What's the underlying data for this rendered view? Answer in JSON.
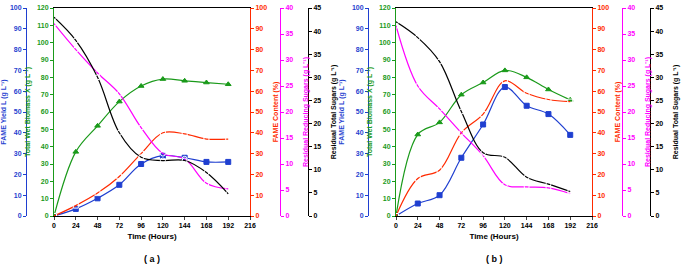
{
  "chart_data": [
    {
      "type": "line",
      "title": "( a )",
      "x_label": "Time (Hours)",
      "x": [
        0,
        24,
        48,
        72,
        96,
        120,
        144,
        168,
        192
      ],
      "xlim": [
        0,
        216
      ],
      "xticks": [
        0,
        24,
        48,
        72,
        96,
        120,
        144,
        168,
        192,
        216
      ],
      "series": [
        {
          "name": "FAME Yield L (g L⁻¹)",
          "axis": "y",
          "color": "#1f3fd0",
          "marker": "square",
          "line_style": "smooth",
          "ylim": [
            0,
            100
          ],
          "yticks": [
            0,
            10,
            20,
            30,
            40,
            50,
            60,
            70,
            80,
            90,
            100
          ],
          "values": [
            0,
            3.4,
            8.5,
            15,
            25,
            29,
            28,
            26,
            26
          ]
        },
        {
          "name": "Total Wet Biomass X (g L⁻¹)",
          "axis": "y2",
          "color": "#1a9a1a",
          "marker": "triangle-up",
          "line_style": "smooth",
          "ylim": [
            0,
            120
          ],
          "yticks": [
            0,
            10,
            20,
            30,
            40,
            50,
            60,
            70,
            80,
            90,
            100,
            110,
            120
          ],
          "values": [
            0,
            37,
            52,
            66,
            75,
            79,
            78,
            77,
            76
          ]
        },
        {
          "name": "FAME Content (%)",
          "axis": "y3",
          "color": "#ff2a00",
          "marker": "square-open",
          "line_style": "smooth",
          "ylim": [
            0,
            100
          ],
          "yticks": [
            0,
            10,
            20,
            30,
            40,
            50,
            60,
            70,
            80,
            90,
            100
          ],
          "values": [
            0,
            5,
            11,
            19,
            30,
            40,
            39.5,
            37,
            37
          ]
        },
        {
          "name": "Residual Reducing Sugars (g L⁻¹)",
          "axis": "y4",
          "color": "#ff00ff",
          "marker": "circle-open",
          "line_style": "smooth",
          "ylim": [
            0,
            40
          ],
          "yticks": [
            0,
            5,
            10,
            15,
            20,
            25,
            30,
            35,
            40
          ],
          "values": [
            37,
            32,
            27.5,
            23.5,
            17,
            12,
            11,
            6.3,
            5.2
          ]
        },
        {
          "name": "Residual Total Sugars (g L⁻¹)",
          "axis": "y5",
          "color": "#000000",
          "marker": "circle-open",
          "line_style": "smooth",
          "ylim": [
            0,
            45
          ],
          "yticks": [
            0,
            5,
            10,
            15,
            20,
            25,
            30,
            35,
            40,
            45
          ],
          "values": [
            43,
            38,
            30,
            18,
            12.7,
            12,
            12,
            9.4,
            4.8
          ]
        }
      ]
    },
    {
      "type": "line",
      "title": "( b )",
      "x_label": "Time (Hours)",
      "x": [
        0,
        24,
        48,
        72,
        96,
        120,
        144,
        168,
        192
      ],
      "xlim": [
        0,
        216
      ],
      "xticks": [
        0,
        24,
        48,
        72,
        96,
        120,
        144,
        168,
        192,
        216
      ],
      "series": [
        {
          "name": "FAME Yield L (g L⁻¹)",
          "axis": "y",
          "color": "#1f3fd0",
          "marker": "square",
          "line_style": "smooth",
          "ylim": [
            0,
            100
          ],
          "yticks": [
            0,
            10,
            20,
            30,
            40,
            50,
            60,
            70,
            80,
            90,
            100
          ],
          "values": [
            0,
            6,
            10,
            28,
            44,
            62,
            53,
            49,
            39
          ]
        },
        {
          "name": "Total Wet Biomass X (g L⁻¹)",
          "axis": "y2",
          "color": "#1a9a1a",
          "marker": "triangle-up",
          "line_style": "smooth",
          "ylim": [
            0,
            120
          ],
          "yticks": [
            0,
            10,
            20,
            30,
            40,
            50,
            60,
            70,
            80,
            90,
            100,
            110,
            120
          ],
          "values": [
            0,
            47,
            54,
            70,
            77,
            84,
            80,
            73,
            67
          ]
        },
        {
          "name": "FAME Content (%)",
          "axis": "y3",
          "color": "#ff2a00",
          "marker": "square-open",
          "line_style": "smooth",
          "ylim": [
            0,
            100
          ],
          "yticks": [
            0,
            10,
            20,
            30,
            40,
            50,
            60,
            70,
            80,
            90,
            100
          ],
          "values": [
            0,
            18,
            22,
            40,
            49,
            65,
            59,
            56,
            55
          ]
        },
        {
          "name": "Residual Reducing Sugars (g L⁻¹)",
          "axis": "y4",
          "color": "#ff00ff",
          "marker": "circle-open",
          "line_style": "smooth",
          "ylim": [
            0,
            40
          ],
          "yticks": [
            0,
            5,
            10,
            15,
            20,
            25,
            30,
            35,
            40
          ],
          "values": [
            36.6,
            25,
            20.6,
            16,
            11.6,
            6,
            5.6,
            5.4,
            4.3
          ]
        },
        {
          "name": "Residual Total Sugars (g L⁻¹)",
          "axis": "y5",
          "color": "#000000",
          "marker": "circle-open",
          "line_style": "smooth",
          "ylim": [
            0,
            45
          ],
          "yticks": [
            0,
            5,
            10,
            15,
            20,
            25,
            30,
            35,
            40,
            45
          ],
          "values": [
            42,
            38.6,
            33.4,
            22.6,
            13.7,
            12.7,
            8.4,
            6.9,
            5.3
          ]
        }
      ]
    }
  ]
}
